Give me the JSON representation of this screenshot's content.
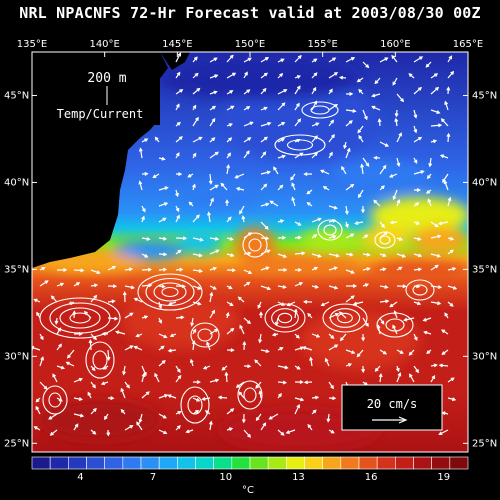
{
  "title": "NRL NPACNFS 72-Hr Forecast valid at 2003/08/30 00Z",
  "map": {
    "depth_label": "200  m",
    "field_label": "Temp/Current",
    "lon_labels": [
      "135°E",
      "140°E",
      "145°E",
      "150°E",
      "155°E",
      "160°E",
      "165°E"
    ],
    "lat_labels": [
      "45°N",
      "40°N",
      "35°N",
      "30°N",
      "25°N"
    ],
    "lon_range": [
      135,
      165
    ],
    "lat_range": [
      24.5,
      47.5
    ],
    "scale_vector_label": "20  cm/s",
    "land_color": "#000000",
    "vector_color": "#ffffff"
  },
  "colorbar": {
    "tick_labels": [
      "4",
      "7",
      "10",
      "13",
      "16",
      "19"
    ],
    "unit": "°C",
    "range": [
      2,
      20
    ],
    "colors": [
      "#1a1a8c",
      "#1f28a8",
      "#2438c0",
      "#2a4ed4",
      "#2f63e6",
      "#2f7af2",
      "#2a90f7",
      "#1fa8f5",
      "#12c2ea",
      "#07d7c8",
      "#0ae08a",
      "#23e23c",
      "#67e41d",
      "#a9ea14",
      "#e6ee12",
      "#f7d218",
      "#f7a61c",
      "#f17a1e",
      "#e6521c",
      "#d6321a",
      "#c31e18",
      "#ac1214",
      "#940c10",
      "#7e0a0c"
    ]
  }
}
